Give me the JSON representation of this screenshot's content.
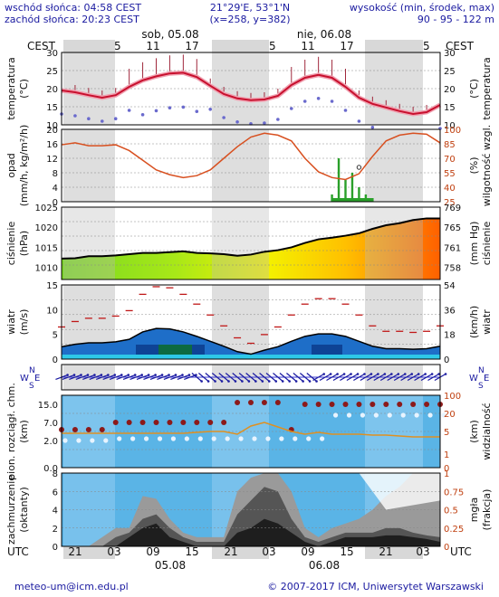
{
  "header": {
    "sunrise": "wschód słońca: 04:58 CEST",
    "sunset": "zachód słońca: 20:23 CEST",
    "coords": "21°29'E, 53°1'N",
    "grid": "(x=258, y=382)",
    "heights_title": "wysokość (min, środek, max)",
    "heights": "90 - 95 - 122 m"
  },
  "top_axis": {
    "tz": "CEST",
    "day1": "sob, 05.08",
    "day2": "nie, 06.08",
    "hours": [
      "23",
      "05",
      "11",
      "17",
      "23",
      "05",
      "11",
      "17",
      "23",
      "05"
    ]
  },
  "bottom_axis": {
    "tz": "UTC",
    "hours": [
      "21",
      "03",
      "09",
      "15",
      "21",
      "03",
      "09",
      "15",
      "21",
      "03"
    ],
    "date1": "05.08",
    "date2": "06.08"
  },
  "panels": {
    "temp": {
      "left": "temperatura",
      "left2": "(°C)",
      "right": "temperatura",
      "right2": "(°C)",
      "ticks": [
        "30",
        "25",
        "20",
        "15",
        "10"
      ]
    },
    "precip": {
      "left": "opad",
      "left2": "(mm/h, kg/m²/h)",
      "right": "wilgotność wzgl.",
      "right2": "(%)",
      "ticks": [
        "20",
        "16",
        "12",
        "8",
        "4",
        "0"
      ],
      "rticks": [
        "100",
        "85",
        "70",
        "55",
        "40",
        "25"
      ]
    },
    "pressure": {
      "left": "ciśnienie",
      "left2": "(hPa)",
      "right": "ciśnienie",
      "right2": "(mm Hg)",
      "ticks": [
        "1025",
        "1020",
        "1015",
        "1010"
      ],
      "rticks": [
        "769",
        "765",
        "761",
        "758"
      ]
    },
    "wind": {
      "left": "wiatr",
      "left2": "(m/s)",
      "right": "wiatr",
      "right2": "(km/h)",
      "ticks": [
        "15",
        "10",
        "5",
        "0"
      ],
      "rticks": [
        "54",
        "36",
        "18",
        "0"
      ]
    },
    "dir": {
      "w": "W",
      "n": "N",
      "s": "S",
      "e": "E"
    },
    "cloud": {
      "left": "pion. rozciągł. chm.",
      "left2": "(km)",
      "right": "widzialność",
      "right2": "(km)",
      "ticks": [
        "15.0",
        "7.0",
        "2.0",
        "0.0"
      ],
      "rticks": [
        "100",
        "20",
        "5",
        "1",
        "0"
      ]
    },
    "cover": {
      "left": "zachmurzenie",
      "left2": "(oktanty)",
      "right": "(frakcja)",
      "right2": "mgła",
      "ticks": [
        "8",
        "6",
        "4",
        "2",
        "0"
      ],
      "rticks": [
        "1",
        "0.75",
        "0.5",
        "0.25",
        "0"
      ]
    }
  },
  "footer": {
    "email": "meteo-um@icm.edu.pl",
    "copyright": "© 2007-2017 ICM, Uniwersytet Warszawski"
  },
  "colors": {
    "temp_line": "#c8102e",
    "humidity_line": "#d85020",
    "precip_bar": "#2aa02a",
    "wind_line": "#111111",
    "shade": "#d8d8d8",
    "cloud_bg": "#5ab4e6",
    "pressure_low": "#80e020",
    "pressure_high": "#ff6a00"
  },
  "chart_data": [
    {
      "type": "line",
      "title": "temperatura",
      "ylabel": "(°C)",
      "ylim": [
        10,
        30
      ],
      "x": [
        "23",
        "01",
        "03",
        "05",
        "07",
        "09",
        "11",
        "13",
        "15",
        "17",
        "19",
        "21",
        "23",
        "01",
        "03",
        "05",
        "07",
        "09",
        "11",
        "13",
        "15",
        "17",
        "19",
        "21",
        "23",
        "01",
        "03",
        "05",
        "07"
      ],
      "series": [
        {
          "values": [
            19.5,
            19,
            18.2,
            17.5,
            18.2,
            20.5,
            22.3,
            23.4,
            24.2,
            24.4,
            23.2,
            20.8,
            18.5,
            17.3,
            16.8,
            17,
            18,
            21,
            23,
            23.8,
            23,
            20.5,
            17.5,
            15.8,
            14.8,
            13.8,
            13,
            13.5,
            15.5
          ]
        }
      ]
    },
    {
      "type": "line",
      "title": "wilgotność wzgl.",
      "ylabel": "(%)",
      "ylim": [
        25,
        100
      ],
      "series": [
        {
          "values": [
            84,
            86,
            83,
            83,
            84,
            78,
            68,
            58,
            53,
            50,
            52,
            58,
            70,
            82,
            92,
            96,
            94,
            88,
            70,
            56,
            50,
            48,
            54,
            72,
            88,
            94,
            96,
            95,
            86
          ]
        }
      ]
    },
    {
      "type": "line",
      "title": "ciśnienie",
      "ylabel": "(hPa)",
      "ylim": [
        1007,
        1025
      ],
      "series": [
        {
          "values": [
            1012.2,
            1012.3,
            1012.8,
            1012.8,
            1013.0,
            1013.3,
            1013.6,
            1013.6,
            1013.8,
            1014.0,
            1013.6,
            1013.5,
            1013.3,
            1012.9,
            1013.2,
            1013.9,
            1014.3,
            1015.0,
            1016.1,
            1017.0,
            1017.4,
            1017.9,
            1018.5,
            1019.6,
            1020.5,
            1021.0,
            1021.8,
            1022.2,
            1022.2
          ]
        }
      ]
    },
    {
      "type": "area",
      "title": "wiatr",
      "ylabel": "(m/s)",
      "ylim": [
        0,
        15
      ],
      "series": [
        {
          "values": [
            2.5,
            3,
            3.3,
            3.3,
            3.5,
            4,
            5.5,
            6.2,
            6.1,
            5.5,
            4.6,
            3.6,
            2.6,
            1.5,
            1,
            1.8,
            2.5,
            3.6,
            4.6,
            5.1,
            5.1,
            4.6,
            3.6,
            2.6,
            2.1,
            2.1,
            2,
            2.1,
            2.6
          ]
        }
      ]
    }
  ]
}
